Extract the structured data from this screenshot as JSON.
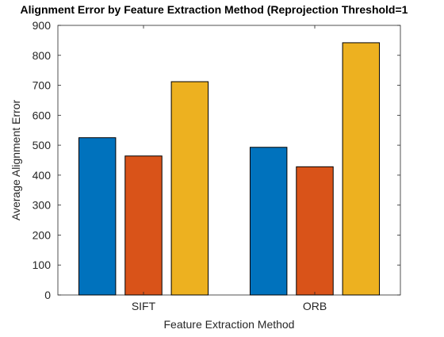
{
  "chart_data": {
    "type": "bar",
    "title": "Alignment Error by Feature Extraction Method (Reprojection Threshold=1",
    "xlabel": "Feature Extraction Method",
    "ylabel": "Average Alignment Error",
    "categories": [
      "SIFT",
      "ORB"
    ],
    "series": [
      {
        "values": [
          525,
          493
        ],
        "color": "#0072BD"
      },
      {
        "values": [
          464,
          428
        ],
        "color": "#D95319"
      },
      {
        "values": [
          712,
          842
        ],
        "color": "#EDB120"
      }
    ],
    "ylim": [
      0,
      900
    ],
    "yticks": [
      "0",
      "100",
      "200",
      "300",
      "400",
      "500",
      "600",
      "700",
      "800",
      "900"
    ],
    "grid": false,
    "legend": "none"
  }
}
